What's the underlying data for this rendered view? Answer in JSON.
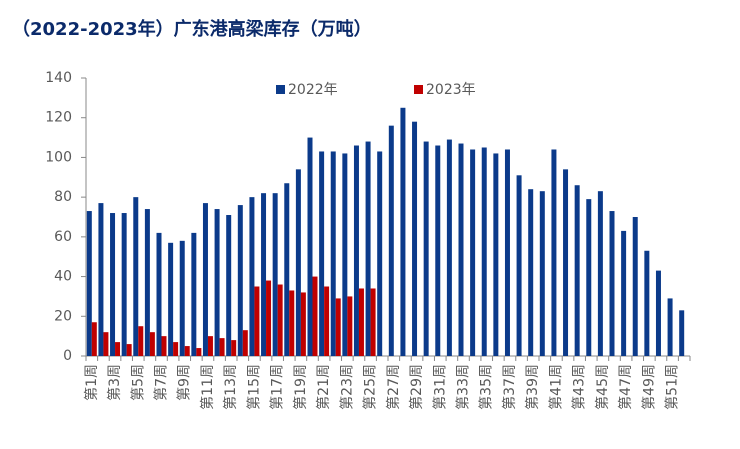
{
  "chart_data": {
    "type": "bar",
    "title": "（2022-2023年）广东港高梁库存（万吨）",
    "categories": [
      "第1周",
      null,
      "第3周",
      null,
      "第5周",
      null,
      "第7周",
      null,
      "第9周",
      null,
      "第11周",
      null,
      "第13周",
      null,
      "第15周",
      null,
      "第17周",
      null,
      "第19周",
      null,
      "第21周",
      null,
      "第23周",
      null,
      "第25周",
      null,
      "第27周",
      null,
      "第29周",
      null,
      "第31周",
      null,
      "第33周",
      null,
      "第35周",
      null,
      "第37周",
      null,
      "第39周",
      null,
      "第41周",
      null,
      "第43周",
      null,
      "第45周",
      null,
      "第47周",
      null,
      "第49周",
      null,
      "第51周",
      null
    ],
    "series": [
      {
        "name": "2022年",
        "color": "#0b3a8a",
        "values": [
          73,
          77,
          72,
          72,
          80,
          74,
          62,
          57,
          58,
          62,
          77,
          74,
          71,
          76,
          80,
          82,
          82,
          87,
          94,
          110,
          103,
          103,
          102,
          106,
          108,
          103,
          116,
          125,
          118,
          108,
          106,
          109,
          107,
          104,
          105,
          102,
          104,
          91,
          84,
          83,
          104,
          94,
          86,
          79,
          83,
          73,
          63,
          70,
          53,
          43,
          29,
          23
        ]
      },
      {
        "name": "2023年",
        "color": "#c00000",
        "values": [
          17,
          12,
          7,
          6,
          15,
          12,
          10,
          7,
          5,
          4,
          10,
          9,
          8,
          13,
          35,
          38,
          36,
          33,
          32,
          40,
          35,
          29,
          30,
          34,
          34,
          null,
          null,
          null,
          null,
          null,
          null,
          null,
          null,
          null,
          null,
          null,
          null,
          null,
          null,
          null,
          null,
          null,
          null,
          null,
          null,
          null,
          null,
          null,
          null,
          null,
          null,
          null
        ]
      }
    ],
    "ylim": [
      0,
      140
    ],
    "yticks": [
      0,
      20,
      40,
      60,
      80,
      100,
      120,
      140
    ],
    "legend": "top"
  }
}
